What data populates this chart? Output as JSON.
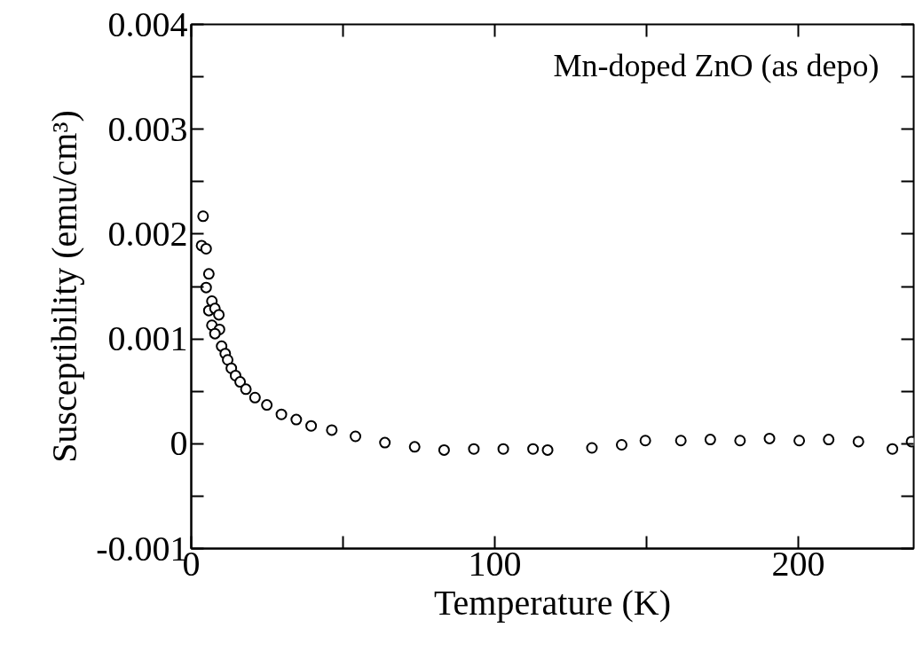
{
  "chart_data": {
    "type": "scatter",
    "xlabel": "Temperature (K)",
    "ylabel": "Susceptibility (emu/cm³)",
    "annotations": [
      "Mn-doped ZnO (as depo)"
    ],
    "xlim": [
      0,
      238
    ],
    "ylim": [
      -0.001,
      0.004
    ],
    "xticks": [
      0,
      {
        "value": 50,
        "label": null
      },
      100,
      {
        "value": 150,
        "label": null
      },
      200
    ],
    "yticks": [
      -0.001,
      {
        "value": -0.0005,
        "label": null
      },
      0,
      {
        "value": 0.0005,
        "label": null
      },
      0.001,
      {
        "value": 0.0015,
        "label": null
      },
      0.002,
      {
        "value": 0.0025,
        "label": null
      },
      0.003,
      {
        "value": 0.0035,
        "label": null
      },
      0.004
    ],
    "marker": "circle",
    "grid": false,
    "series": [
      {
        "color": "#000000",
        "x": [
          3.9,
          3.4,
          4.9,
          5.8,
          4.9,
          6.8,
          5.8,
          7.8,
          9.1,
          6.8,
          9.3,
          7.8,
          10.0,
          11.2,
          12,
          13.2,
          14.6,
          16.1,
          18,
          21,
          24.9,
          29.7,
          34.6,
          39.5,
          46.3,
          54.1,
          63.8,
          73.6,
          83.3,
          93.1,
          102.8,
          112.6,
          117.4,
          132,
          141.8,
          149.6,
          161.3,
          171,
          180.8,
          190.5,
          200.3,
          210,
          219.8,
          231,
          237.3
        ],
        "values": [
          0.00217,
          0.00189,
          0.00186,
          0.00162,
          0.00149,
          0.00136,
          0.00127,
          0.00129,
          0.00123,
          0.00113,
          0.00109,
          0.00105,
          0.00093,
          0.00086,
          0.0008,
          0.00072,
          0.00065,
          0.00059,
          0.00052,
          0.00044,
          0.00037,
          0.00028,
          0.00023,
          0.00017,
          0.00013,
          7e-05,
          1e-05,
          -3e-05,
          -6e-05,
          -5e-05,
          -5e-05,
          -5e-05,
          -6e-05,
          -4e-05,
          -1e-05,
          3e-05,
          3e-05,
          4e-05,
          3e-05,
          5e-05,
          3e-05,
          4e-05,
          2e-05,
          -5e-05,
          2e-05
        ]
      }
    ]
  }
}
